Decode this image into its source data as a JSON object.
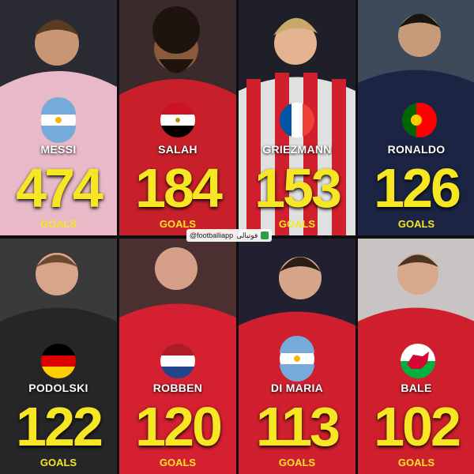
{
  "players": [
    {
      "name": "MESSI",
      "goals": "474"
    },
    {
      "name": "SALAH",
      "goals": "184"
    },
    {
      "name": "GRIEZMANN",
      "goals": "153"
    },
    {
      "name": "RONALDO",
      "goals": "126"
    },
    {
      "name": "PODOLSKI",
      "goals": "122"
    },
    {
      "name": "ROBBEN",
      "goals": "120"
    },
    {
      "name": "DI MARIA",
      "goals": "113"
    },
    {
      "name": "BALE",
      "goals": "102"
    }
  ],
  "unit_label": "GOALS",
  "watermark": {
    "handle": "@footballiapp",
    "brand": "فوتبالی"
  }
}
